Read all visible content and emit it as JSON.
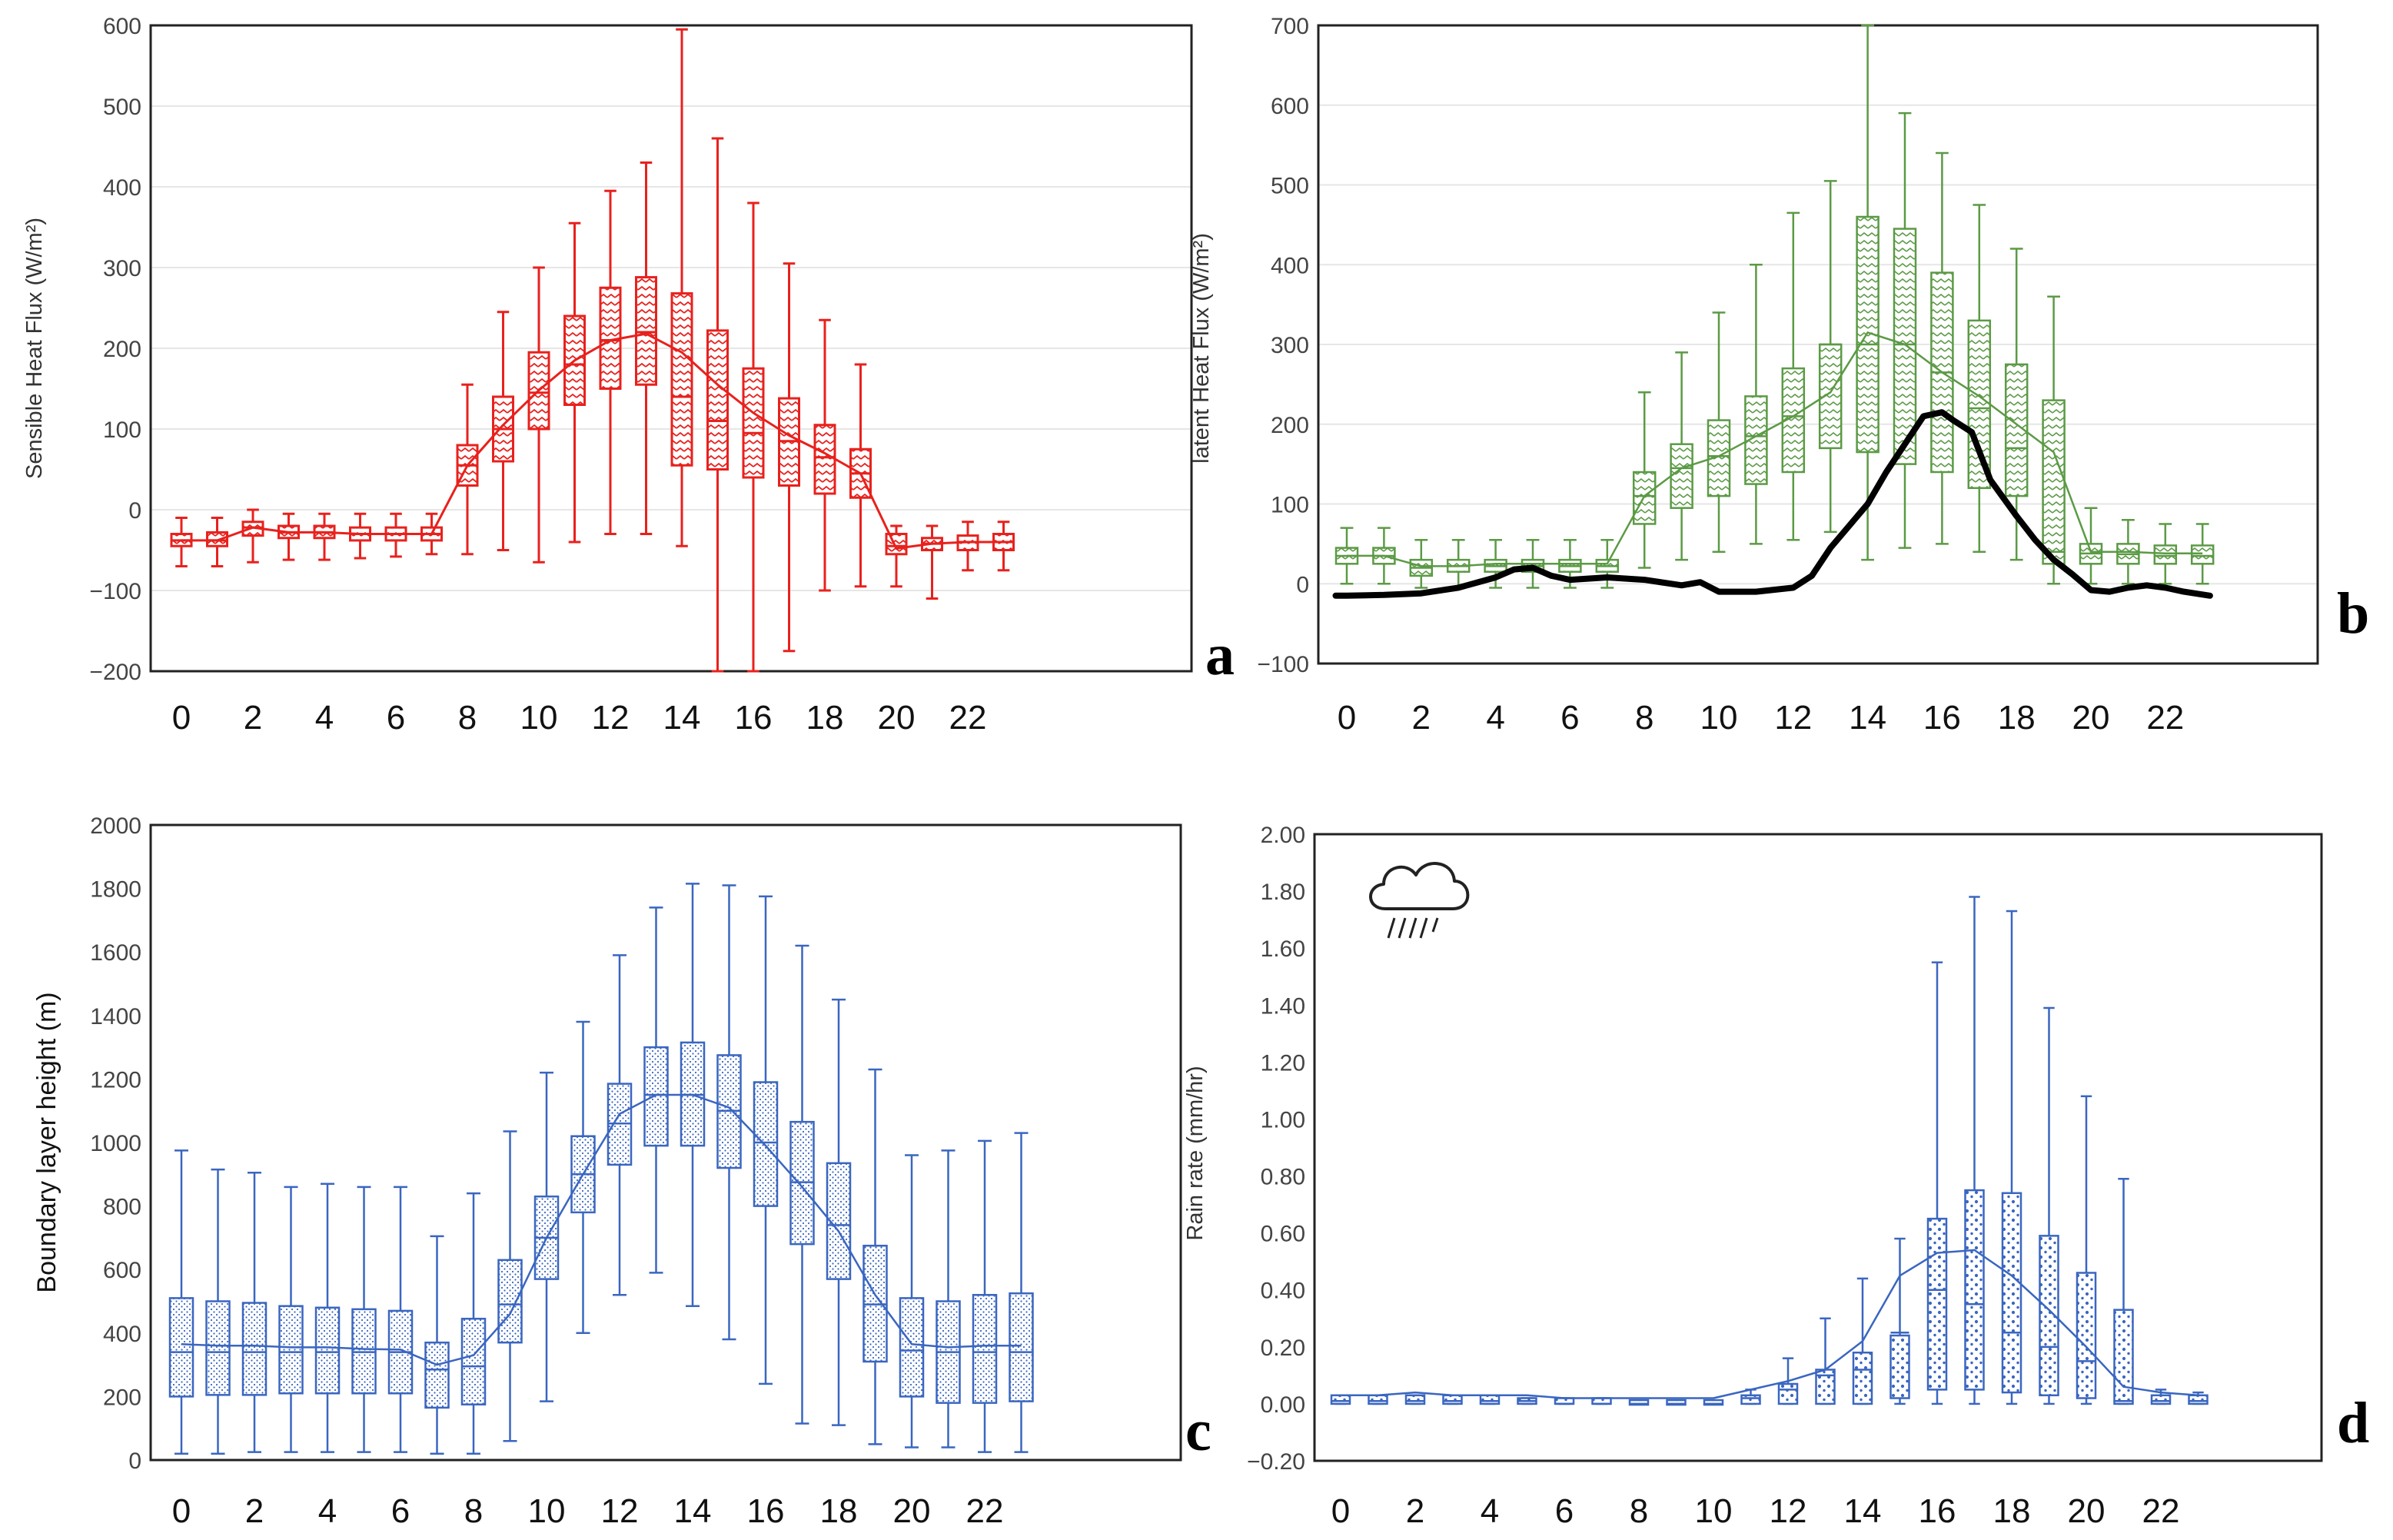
{
  "colors": {
    "a": "#e8211d",
    "b": "#5b9a45",
    "c": "#3a66c0",
    "d": "#3a66c0",
    "b_overlay": "#000000"
  },
  "icons": {
    "d": "rain-cloud-icon"
  },
  "chart_data": [
    {
      "id": "a",
      "label": "a",
      "type": "boxplot",
      "ylabel": "Sensible Heat Flux (W/m²)",
      "ylim": [
        -200,
        600
      ],
      "yticks": [
        -200,
        -100,
        0,
        100,
        200,
        300,
        400,
        500,
        600
      ],
      "ytick_labels": [
        "−200",
        "−100",
        "0",
        "100",
        "200",
        "300",
        "400",
        "500",
        "600"
      ],
      "xticks": [
        "0",
        "2",
        "4",
        "6",
        "8",
        "10",
        "12",
        "14",
        "16",
        "18",
        "20",
        "22"
      ],
      "hours": [
        0,
        1,
        2,
        3,
        4,
        5,
        6,
        7,
        8,
        9,
        10,
        11,
        12,
        13,
        14,
        15,
        16,
        17,
        18,
        19,
        20,
        21,
        22,
        23
      ],
      "min": [
        -70,
        -70,
        -65,
        -62,
        -62,
        -60,
        -58,
        -55,
        -55,
        -50,
        -65,
        -40,
        -30,
        -30,
        -45,
        -200,
        -200,
        -175,
        -100,
        -95,
        -95,
        -110,
        -75,
        -75
      ],
      "q1": [
        -45,
        -45,
        -32,
        -35,
        -35,
        -38,
        -38,
        -38,
        30,
        60,
        100,
        130,
        150,
        155,
        55,
        50,
        40,
        30,
        20,
        15,
        -55,
        -50,
        -50,
        -50
      ],
      "median": [
        -38,
        -38,
        -22,
        -28,
        -28,
        -30,
        -30,
        -30,
        55,
        100,
        145,
        180,
        210,
        220,
        140,
        110,
        95,
        85,
        65,
        45,
        -45,
        -42,
        -40,
        -40
      ],
      "q3": [
        -30,
        -28,
        -15,
        -20,
        -20,
        -22,
        -22,
        -22,
        80,
        140,
        195,
        240,
        275,
        288,
        268,
        222,
        175,
        138,
        105,
        75,
        -30,
        -35,
        -32,
        -30
      ],
      "max": [
        -10,
        -10,
        0,
        -5,
        -5,
        -5,
        -5,
        -5,
        155,
        245,
        300,
        355,
        395,
        430,
        595,
        460,
        380,
        305,
        235,
        180,
        -20,
        -20,
        -15,
        -15
      ],
      "mean": [
        -38,
        -38,
        -22,
        -28,
        -28,
        -30,
        -30,
        -30,
        55,
        105,
        148,
        185,
        210,
        218,
        195,
        155,
        120,
        92,
        70,
        45,
        -48,
        -42,
        -40,
        -40
      ]
    },
    {
      "id": "b",
      "label": "b",
      "type": "boxplot",
      "ylabel": "latent Heat Flux (W/m²)",
      "ylim": [
        -100,
        700
      ],
      "yticks": [
        -100,
        0,
        100,
        200,
        300,
        400,
        500,
        600,
        700
      ],
      "ytick_labels": [
        "−100",
        "0",
        "100",
        "200",
        "300",
        "400",
        "500",
        "600",
        "700"
      ],
      "xticks": [
        "0",
        "2",
        "4",
        "6",
        "8",
        "10",
        "12",
        "14",
        "16",
        "18",
        "20",
        "22"
      ],
      "hours": [
        0,
        1,
        2,
        3,
        4,
        5,
        6,
        7,
        8,
        9,
        10,
        11,
        12,
        13,
        14,
        15,
        16,
        17,
        18,
        19,
        20,
        21,
        22,
        23
      ],
      "min": [
        0,
        0,
        -5,
        -5,
        -5,
        -5,
        -5,
        -5,
        20,
        30,
        40,
        50,
        55,
        65,
        30,
        45,
        50,
        40,
        30,
        0,
        0,
        0,
        0,
        0
      ],
      "q1": [
        25,
        25,
        10,
        15,
        15,
        15,
        15,
        15,
        75,
        95,
        110,
        125,
        140,
        170,
        165,
        150,
        140,
        120,
        110,
        25,
        25,
        25,
        25,
        25
      ],
      "median": [
        35,
        35,
        20,
        22,
        22,
        22,
        22,
        22,
        110,
        145,
        160,
        185,
        210,
        300,
        300,
        300,
        265,
        220,
        170,
        40,
        38,
        37,
        35,
        35
      ],
      "q3": [
        45,
        45,
        30,
        30,
        30,
        30,
        30,
        30,
        140,
        175,
        205,
        235,
        270,
        300,
        460,
        445,
        390,
        330,
        275,
        230,
        50,
        50,
        48,
        48
      ],
      "max": [
        70,
        70,
        55,
        55,
        55,
        55,
        55,
        55,
        240,
        290,
        340,
        400,
        465,
        505,
        700,
        590,
        540,
        475,
        420,
        360,
        95,
        80,
        75,
        75
      ],
      "mean": [
        35,
        35,
        22,
        22,
        25,
        25,
        25,
        25,
        110,
        145,
        160,
        185,
        210,
        240,
        315,
        300,
        265,
        235,
        200,
        165,
        40,
        40,
        38,
        38
      ],
      "overlay_name": "black curve",
      "overlay": [
        [
          -0.3,
          -15
        ],
        [
          0,
          -15
        ],
        [
          1,
          -14
        ],
        [
          2,
          -12
        ],
        [
          3,
          -5
        ],
        [
          4,
          8
        ],
        [
          4.5,
          18
        ],
        [
          5,
          20
        ],
        [
          5.5,
          10
        ],
        [
          6,
          5
        ],
        [
          7,
          8
        ],
        [
          8,
          5
        ],
        [
          9,
          -2
        ],
        [
          9.5,
          2
        ],
        [
          10,
          -10
        ],
        [
          11,
          -10
        ],
        [
          12,
          -5
        ],
        [
          12.5,
          10
        ],
        [
          13,
          45
        ],
        [
          14,
          100
        ],
        [
          14.5,
          140
        ],
        [
          15,
          175
        ],
        [
          15.5,
          210
        ],
        [
          16,
          215
        ],
        [
          16.3,
          205
        ],
        [
          16.8,
          190
        ],
        [
          17.3,
          130
        ],
        [
          18,
          85
        ],
        [
          18.5,
          55
        ],
        [
          19,
          30
        ],
        [
          19.5,
          12
        ],
        [
          20,
          -8
        ],
        [
          20.5,
          -10
        ],
        [
          21,
          -5
        ],
        [
          21.5,
          -2
        ],
        [
          22,
          -5
        ],
        [
          22.5,
          -10
        ],
        [
          23.2,
          -15
        ]
      ]
    },
    {
      "id": "c",
      "label": "c",
      "type": "boxplot",
      "ylabel": "Boundary layer height (m)",
      "ylim": [
        0,
        2000
      ],
      "yticks": [
        0,
        200,
        400,
        600,
        800,
        1000,
        1200,
        1400,
        1600,
        1800,
        2000
      ],
      "ytick_labels": [
        "0",
        "200",
        "400",
        "600",
        "800",
        "1000",
        "1200",
        "1400",
        "1600",
        "1800",
        "2000"
      ],
      "xticks": [
        "0",
        "2",
        "4",
        "6",
        "8",
        "10",
        "12",
        "14",
        "16",
        "18",
        "20",
        "22"
      ],
      "hours": [
        0,
        1,
        2,
        3,
        4,
        5,
        6,
        7,
        8,
        9,
        10,
        11,
        12,
        13,
        14,
        15,
        16,
        17,
        18,
        19,
        20,
        21,
        22,
        23
      ],
      "min": [
        20,
        20,
        25,
        25,
        25,
        25,
        25,
        20,
        20,
        60,
        185,
        400,
        520,
        590,
        485,
        380,
        240,
        115,
        110,
        50,
        40,
        40,
        25,
        25
      ],
      "q1": [
        200,
        205,
        205,
        210,
        210,
        210,
        210,
        165,
        175,
        370,
        570,
        780,
        930,
        990,
        990,
        920,
        800,
        680,
        570,
        310,
        200,
        180,
        180,
        185
      ],
      "median": [
        340,
        340,
        340,
        340,
        340,
        340,
        340,
        285,
        295,
        490,
        700,
        900,
        1060,
        1150,
        1150,
        1100,
        1000,
        875,
        740,
        490,
        345,
        340,
        340,
        340
      ],
      "q3": [
        510,
        500,
        495,
        485,
        480,
        475,
        470,
        370,
        445,
        630,
        830,
        1020,
        1185,
        1300,
        1315,
        1275,
        1190,
        1065,
        935,
        675,
        510,
        500,
        520,
        525
      ],
      "max": [
        975,
        915,
        905,
        860,
        870,
        860,
        860,
        705,
        840,
        1035,
        1220,
        1380,
        1590,
        1740,
        1815,
        1810,
        1775,
        1620,
        1450,
        1230,
        960,
        975,
        1005,
        1030
      ],
      "mean": [
        365,
        360,
        360,
        355,
        355,
        350,
        348,
        300,
        330,
        460,
        700,
        900,
        1090,
        1150,
        1150,
        1110,
        990,
        860,
        720,
        520,
        365,
        355,
        360,
        360
      ]
    },
    {
      "id": "d",
      "label": "d",
      "type": "boxplot",
      "ylabel": "Rain rate (mm/hr)",
      "ylim": [
        -0.2,
        2.0
      ],
      "yticks": [
        -0.2,
        0,
        0.2,
        0.4,
        0.6,
        0.8,
        1.0,
        1.2,
        1.4,
        1.6,
        1.8,
        2.0
      ],
      "ytick_labels": [
        "−0.20",
        "0.00",
        "0.20",
        "0.40",
        "0.60",
        "0.80",
        "1.00",
        "1.20",
        "1.40",
        "1.60",
        "1.80",
        "2.00"
      ],
      "xticks": [
        "0",
        "2",
        "4",
        "6",
        "8",
        "10",
        "12",
        "14",
        "16",
        "18",
        "20",
        "22"
      ],
      "hours": [
        0,
        1,
        2,
        3,
        4,
        5,
        6,
        7,
        8,
        9,
        10,
        11,
        12,
        13,
        14,
        15,
        16,
        17,
        18,
        19,
        20,
        21,
        22,
        23
      ],
      "min": [
        0,
        0,
        0,
        0,
        0,
        0,
        0,
        0,
        0,
        0,
        0,
        0,
        0,
        0,
        0,
        0,
        0,
        0,
        0,
        0,
        0,
        0,
        0,
        0
      ],
      "q1": [
        0,
        0,
        0,
        0,
        0,
        0,
        0,
        0,
        0,
        0,
        0,
        0,
        0,
        0,
        0,
        0.02,
        0.05,
        0.05,
        0.04,
        0.03,
        0.02,
        0,
        0,
        0
      ],
      "median": [
        0.01,
        0.01,
        0.01,
        0.01,
        0.01,
        0.01,
        0,
        0,
        0,
        0,
        0,
        0.02,
        0.05,
        0.1,
        0.12,
        0.25,
        0.4,
        0.35,
        0.25,
        0.2,
        0.15,
        0.01,
        0.01,
        0.01
      ],
      "q3": [
        0.03,
        0.03,
        0.03,
        0.03,
        0.03,
        0.02,
        0.02,
        0.02,
        0.01,
        0.01,
        0.01,
        0.03,
        0.07,
        0.12,
        0.18,
        0.24,
        0.65,
        0.75,
        0.74,
        0.59,
        0.46,
        0.33,
        0.03,
        0.03
      ],
      "max": [
        0.03,
        0.03,
        0.03,
        0.03,
        0.03,
        0.02,
        0.02,
        0.02,
        0.01,
        0.01,
        0.01,
        0.05,
        0.16,
        0.3,
        0.44,
        0.58,
        1.55,
        1.78,
        1.73,
        1.39,
        1.08,
        0.79,
        0.05,
        0.04
      ],
      "mean": [
        0.03,
        0.03,
        0.04,
        0.03,
        0.03,
        0.03,
        0.02,
        0.02,
        0.02,
        0.02,
        0.02,
        0.05,
        0.08,
        0.12,
        0.22,
        0.45,
        0.53,
        0.54,
        0.45,
        0.33,
        0.2,
        0.06,
        0.04,
        0.03
      ]
    }
  ]
}
